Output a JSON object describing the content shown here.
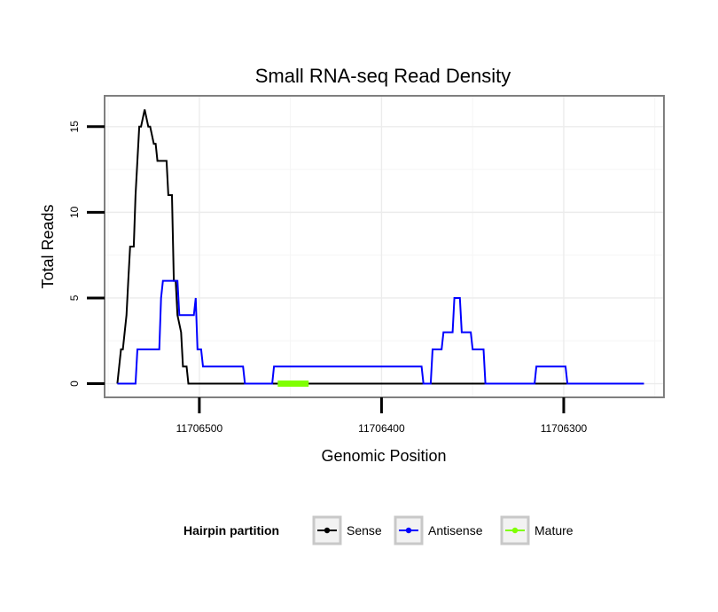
{
  "chart_data": {
    "type": "line",
    "title": "Small RNA-seq Read Density",
    "xlabel": "Genomic Position",
    "ylabel": "Total Reads",
    "xlim": [
      11706552,
      11706245
    ],
    "ylim": [
      -0.8,
      16.8
    ],
    "x_ticks": [
      11706500,
      11706400,
      11706300
    ],
    "x_tick_labels": [
      "11706500",
      "11706400",
      "11706300"
    ],
    "y_ticks": [
      0,
      5,
      10,
      15
    ],
    "y_tick_labels": [
      "0",
      "5",
      "10",
      "15"
    ],
    "grid": true,
    "x_reversed": true,
    "legend": {
      "title": "Hairpin partition",
      "position": "bottom",
      "entries": [
        "Sense",
        "Antisense",
        "Mature"
      ]
    },
    "series": [
      {
        "name": "Sense",
        "color": "#000000",
        "x": [
          11706545,
          11706543,
          11706542,
          11706540,
          11706539,
          11706538,
          11706536,
          11706535,
          11706533,
          11706532,
          11706530,
          11706528,
          11706527,
          11706525,
          11706524,
          11706523,
          11706521,
          11706520,
          11706518,
          11706517,
          11706515,
          11706514,
          11706513,
          11706512,
          11706510,
          11706509,
          11706507,
          11706506,
          11706505,
          11706504,
          11706503,
          11706501,
          11706500,
          11706420,
          11706300,
          11706270,
          11706256
        ],
        "values": [
          0,
          2,
          2,
          4,
          6,
          8,
          8,
          11,
          15,
          15,
          16,
          15,
          15,
          14,
          14,
          13,
          13,
          13,
          13,
          11,
          11,
          6,
          6,
          4,
          3,
          1,
          1,
          0,
          0,
          0,
          0,
          0,
          0,
          0,
          0,
          0,
          0
        ]
      },
      {
        "name": "Antisense",
        "color": "#0000ff",
        "x": [
          11706545,
          11706535,
          11706534,
          11706522,
          11706521,
          11706520,
          11706512,
          11706511,
          11706503,
          11706502,
          11706501,
          11706499,
          11706498,
          11706492,
          11706491,
          11706476,
          11706475,
          11706460,
          11706459,
          11706378,
          11706377,
          11706373,
          11706372,
          11706367,
          11706366,
          11706361,
          11706360,
          11706357,
          11706356,
          11706351,
          11706350,
          11706344,
          11706343,
          11706330,
          11706329,
          11706316,
          11706315,
          11706299,
          11706298,
          11706256
        ],
        "values": [
          0,
          0,
          2,
          2,
          5,
          6,
          6,
          4,
          4,
          5,
          2,
          2,
          1,
          1,
          1,
          1,
          0,
          0,
          1,
          1,
          0,
          0,
          2,
          2,
          3,
          3,
          5,
          5,
          3,
          3,
          2,
          2,
          0,
          0,
          0,
          0,
          1,
          1,
          0,
          0
        ]
      },
      {
        "name": "Mature",
        "color": "#7fff00",
        "x": [
          11706457,
          11706440
        ],
        "values": [
          0,
          0
        ]
      }
    ]
  }
}
